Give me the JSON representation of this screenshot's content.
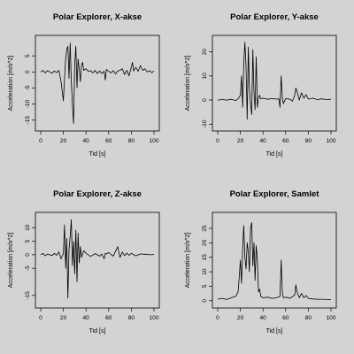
{
  "chart_data": [
    {
      "type": "line",
      "title": "Polar Explorer, X-akse",
      "xlabel": "Tid [s]",
      "ylabel": "Acceleration [m/s^2]",
      "xlim": [
        0,
        100
      ],
      "ylim": [
        -17,
        10
      ],
      "xticks": [
        0,
        20,
        40,
        60,
        80,
        100
      ],
      "yticks": [
        -15,
        -10,
        -5,
        0,
        5
      ],
      "series": [
        {
          "color": "#000000",
          "x": [
            0,
            2,
            4,
            6,
            8,
            10,
            12,
            14,
            16,
            18,
            19,
            20,
            21,
            22,
            23,
            24,
            25,
            26,
            27,
            28,
            29,
            30,
            31,
            32,
            33,
            34,
            35,
            36,
            37,
            38,
            40,
            42,
            44,
            46,
            48,
            50,
            52,
            54,
            56,
            57,
            58,
            60,
            62,
            64,
            66,
            68,
            70,
            72,
            74,
            76,
            78,
            80,
            81,
            82,
            84,
            86,
            88,
            90,
            92,
            94,
            96,
            98,
            100
          ],
          "y": [
            0,
            0.5,
            -0.3,
            0.4,
            0,
            -0.4,
            0.3,
            -0.2,
            0.5,
            -3,
            -6,
            -9,
            -2,
            4,
            7,
            8,
            -2,
            9,
            -3,
            -10,
            -16,
            2,
            8,
            -5,
            4,
            1,
            -3,
            2,
            3,
            0.5,
            1,
            0.2,
            0.4,
            -0.3,
            0.5,
            -0.5,
            0.3,
            -0.5,
            0.2,
            -2.5,
            0.8,
            0.2,
            -0.3,
            0.4,
            -0.6,
            0.3,
            0.5,
            1,
            -0.8,
            0.5,
            -1.2,
            1.5,
            3,
            0.3,
            1.4,
            0.2,
            2,
            0.5,
            1,
            0,
            0.4,
            -0.2,
            0.3
          ]
        }
      ]
    },
    {
      "type": "line",
      "title": "Polar Explorer, Y-akse",
      "xlabel": "Tid [s]",
      "ylabel": "Acceleration [m/s^2]",
      "xlim": [
        0,
        100
      ],
      "ylim": [
        -11,
        25
      ],
      "xticks": [
        0,
        20,
        40,
        60,
        80,
        100
      ],
      "yticks": [
        -10,
        0,
        10,
        20
      ],
      "series": [
        {
          "color": "#000000",
          "x": [
            0,
            4,
            8,
            12,
            16,
            18,
            20,
            21,
            22,
            23,
            24,
            25,
            26,
            27,
            28,
            29,
            30,
            31,
            32,
            33,
            34,
            35,
            36,
            37,
            38,
            40,
            44,
            48,
            52,
            54,
            55,
            56,
            57,
            58,
            60,
            64,
            66,
            68,
            69,
            70,
            72,
            74,
            76,
            78,
            80,
            84,
            88,
            92,
            96,
            100
          ],
          "y": [
            0,
            0.2,
            0,
            0.3,
            -0.2,
            0.5,
            2,
            10,
            -3,
            15,
            24,
            14,
            -8,
            22,
            5,
            -2,
            -6,
            21,
            3,
            -4,
            18,
            -3,
            1,
            2,
            0.5,
            0.8,
            0.3,
            0.6,
            0.4,
            0.5,
            -3,
            10,
            1,
            -1.5,
            0.6,
            0.3,
            -0.5,
            2,
            5,
            3.5,
            0,
            3,
            0.8,
            2.2,
            0.4,
            0.8,
            0.2,
            0.5,
            0.2,
            0.3
          ]
        }
      ]
    },
    {
      "type": "line",
      "title": "Polar Explorer, Z-akse",
      "xlabel": "Tid [s]",
      "ylabel": "Acceleration [m/s^2]",
      "xlim": [
        0,
        100
      ],
      "ylim": [
        -18,
        14
      ],
      "xticks": [
        0,
        20,
        40,
        60,
        80,
        100
      ],
      "yticks": [
        -15,
        -5,
        0,
        5,
        10
      ],
      "series": [
        {
          "color": "#000000",
          "x": [
            0,
            2,
            4,
            6,
            8,
            10,
            12,
            14,
            16,
            18,
            20,
            21,
            22,
            23,
            24,
            25,
            26,
            27,
            28,
            29,
            30,
            31,
            32,
            33,
            34,
            35,
            36,
            38,
            40,
            44,
            48,
            52,
            54,
            56,
            57,
            58,
            60,
            64,
            68,
            70,
            72,
            74,
            76,
            78,
            80,
            84,
            88,
            92,
            96,
            100
          ],
          "y": [
            0,
            0.5,
            -0.4,
            0.3,
            0,
            -0.3,
            0.5,
            -0.2,
            1,
            -1.5,
            0.5,
            11,
            -5,
            6,
            -16,
            2,
            7,
            13,
            -4,
            5,
            -7,
            9,
            -10,
            8,
            -3,
            3,
            -1,
            1.5,
            0.5,
            -0.6,
            0.4,
            -0.5,
            0.3,
            -1.5,
            0.5,
            0.3,
            0.8,
            -0.5,
            3,
            -1,
            1,
            -0.3,
            0.6,
            -0.2,
            0.5,
            -0.4,
            0.3,
            0.2,
            0,
            0.1
          ]
        }
      ]
    },
    {
      "type": "line",
      "title": "Polar Explorer, Samlet",
      "xlabel": "Tid [s]",
      "ylabel": "Acceleration [m/s^2]",
      "xlim": [
        0,
        100
      ],
      "ylim": [
        -1,
        29
      ],
      "xticks": [
        0,
        20,
        40,
        60,
        80,
        100
      ],
      "yticks": [
        0,
        5,
        10,
        15,
        20,
        25
      ],
      "series": [
        {
          "color": "#000000",
          "x": [
            0,
            4,
            8,
            12,
            16,
            18,
            19,
            20,
            21,
            22,
            23,
            24,
            25,
            26,
            27,
            28,
            29,
            30,
            31,
            32,
            33,
            34,
            35,
            36,
            37,
            38,
            40,
            44,
            48,
            52,
            55,
            56,
            57,
            58,
            60,
            64,
            68,
            69,
            70,
            72,
            74,
            76,
            78,
            80,
            84,
            88,
            92,
            96,
            100
          ],
          "y": [
            0.5,
            0.8,
            0.4,
            1,
            1.5,
            3,
            8,
            14,
            6,
            18,
            26,
            15,
            11,
            20,
            17,
            10,
            25,
            27,
            12,
            20,
            7,
            19,
            14,
            3,
            4,
            1.5,
            1,
            1.2,
            0.8,
            1,
            1.5,
            14,
            3,
            1,
            1.2,
            0.8,
            2,
            5.5,
            3,
            1,
            2.5,
            1,
            1.8,
            0.8,
            0.6,
            0.5,
            0.5,
            0.4,
            0.4
          ]
        }
      ]
    }
  ]
}
